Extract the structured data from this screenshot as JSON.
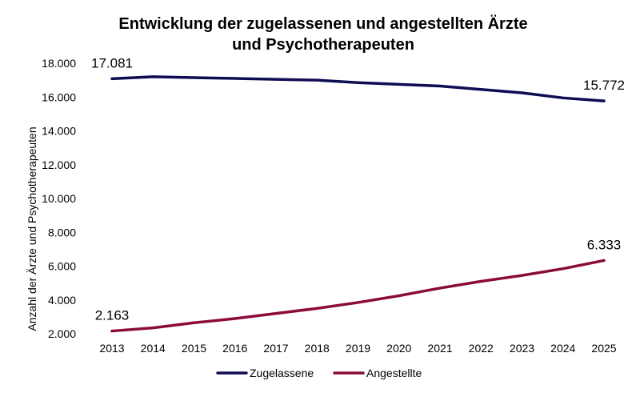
{
  "chart_data": {
    "type": "line",
    "title_lines": [
      "Entwicklung der zugelassenen und angestellten Ärzte",
      "und Psychotherapeuten"
    ],
    "ylabel": "Anzahl der Ärzte und Psychotherapeuten",
    "xlabel": "",
    "categories": [
      "2013",
      "2014",
      "2015",
      "2016",
      "2017",
      "2018",
      "2019",
      "2020",
      "2021",
      "2022",
      "2023",
      "2024",
      "2025"
    ],
    "ylim": [
      2000,
      18000
    ],
    "yticks": [
      2000,
      4000,
      6000,
      8000,
      10000,
      12000,
      14000,
      16000,
      18000
    ],
    "ytick_labels": [
      "2.000",
      "4.000",
      "6.000",
      "8.000",
      "10.000",
      "12.000",
      "14.000",
      "16.000",
      "18.000"
    ],
    "grid": false,
    "legend_position": "bottom",
    "series": [
      {
        "name": "Zugelassene",
        "color": "#0f0c54",
        "values": [
          17081,
          17200,
          17150,
          17100,
          17050,
          17000,
          16850,
          16750,
          16650,
          16450,
          16250,
          15950,
          15772
        ],
        "labels": [
          {
            "index": 0,
            "text": "17.081"
          },
          {
            "index": 12,
            "text": "15.772"
          }
        ]
      },
      {
        "name": "Angestellte",
        "color": "#8a0b3c",
        "values": [
          2163,
          2350,
          2650,
          2900,
          3200,
          3500,
          3850,
          4250,
          4700,
          5100,
          5450,
          5850,
          6333
        ],
        "labels": [
          {
            "index": 0,
            "text": "2.163"
          },
          {
            "index": 12,
            "text": "6.333"
          }
        ]
      }
    ]
  }
}
